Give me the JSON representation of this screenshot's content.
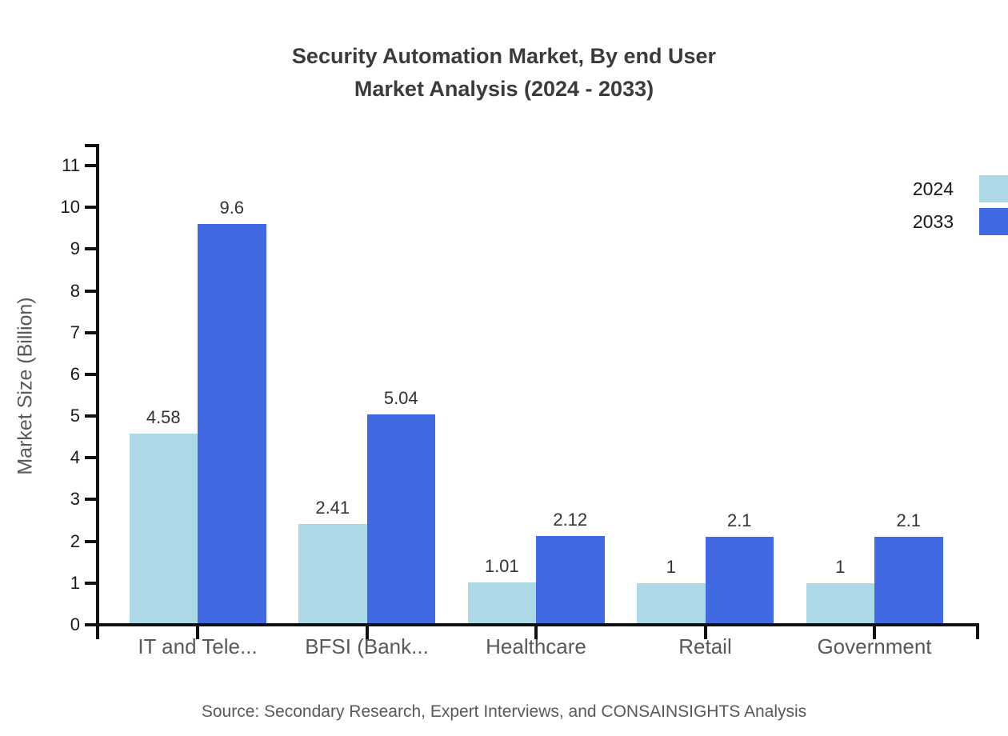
{
  "title": {
    "line1": "Security Automation Market, By end User",
    "line2": "Market Analysis (2024 - 2033)"
  },
  "axis": {
    "ylabel": "Market Size (Billion)"
  },
  "legend": [
    {
      "label": "2024",
      "color": "#add8e6"
    },
    {
      "label": "2033",
      "color": "#4169e1"
    }
  ],
  "source": "Source: Secondary Research, Expert Interviews, and CONSAINSIGHTS Analysis",
  "chart_data": {
    "type": "bar",
    "title": "Security Automation Market, By end User Market Analysis (2024 - 2033)",
    "categories": [
      "IT and Tele...",
      "BFSI (Bank...",
      "Healthcare",
      "Retail",
      "Government"
    ],
    "series": [
      {
        "name": "2024",
        "color": "#add8e6",
        "values": [
          4.58,
          2.41,
          1.01,
          1,
          1
        ]
      },
      {
        "name": "2033",
        "color": "#4169e1",
        "values": [
          9.6,
          5.04,
          2.12,
          2.1,
          2.1
        ]
      }
    ],
    "xlabel": "",
    "ylabel": "Market Size (Billion)",
    "ylim": [
      0,
      11
    ],
    "yticks": [
      0,
      1,
      2,
      3,
      4,
      5,
      6,
      7,
      8,
      9,
      10,
      11
    ],
    "grid": false,
    "legend_position": "upper-right",
    "value_labels_shown": true
  }
}
